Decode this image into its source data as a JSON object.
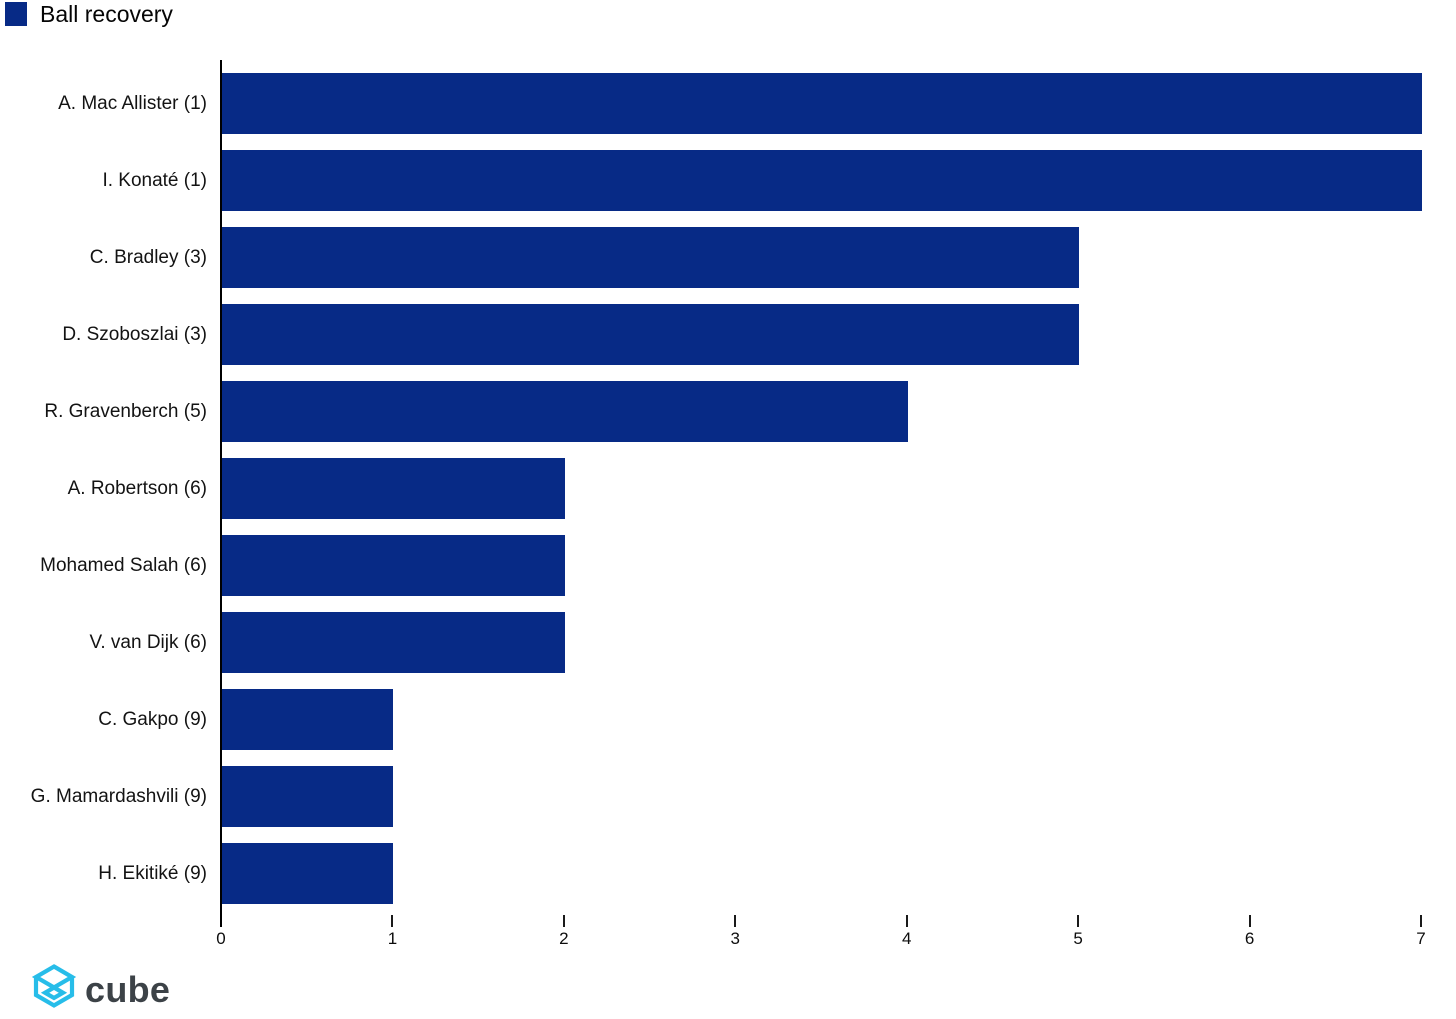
{
  "legend": {
    "label": "Ball recovery",
    "swatch_color": "#072a86"
  },
  "chart_data": {
    "type": "bar",
    "orientation": "horizontal",
    "title": "Ball recovery",
    "categories": [
      "A. Mac Allister (1)",
      "I. Konaté (1)",
      "C. Bradley (3)",
      "D. Szoboszlai (3)",
      "R. Gravenberch (5)",
      "A. Robertson (6)",
      "Mohamed Salah (6)",
      "V. van Dijk (6)",
      "C. Gakpo (9)",
      "G. Mamardashvili (9)",
      "H. Ekitiké (9)"
    ],
    "values": [
      7,
      7,
      5,
      5,
      4,
      2,
      2,
      2,
      1,
      1,
      1
    ],
    "xlabel": "",
    "ylabel": "",
    "xlim": [
      0,
      7
    ],
    "x_ticks": [
      0,
      1,
      2,
      3,
      4,
      5,
      6,
      7
    ],
    "bar_color": "#072a86",
    "grid": false,
    "legend_position": "top-left"
  },
  "footer": {
    "brand": "cube",
    "logo_icon": "cube-icon",
    "logo_color": "#27bde9",
    "brand_text_color": "#3c4247"
  }
}
